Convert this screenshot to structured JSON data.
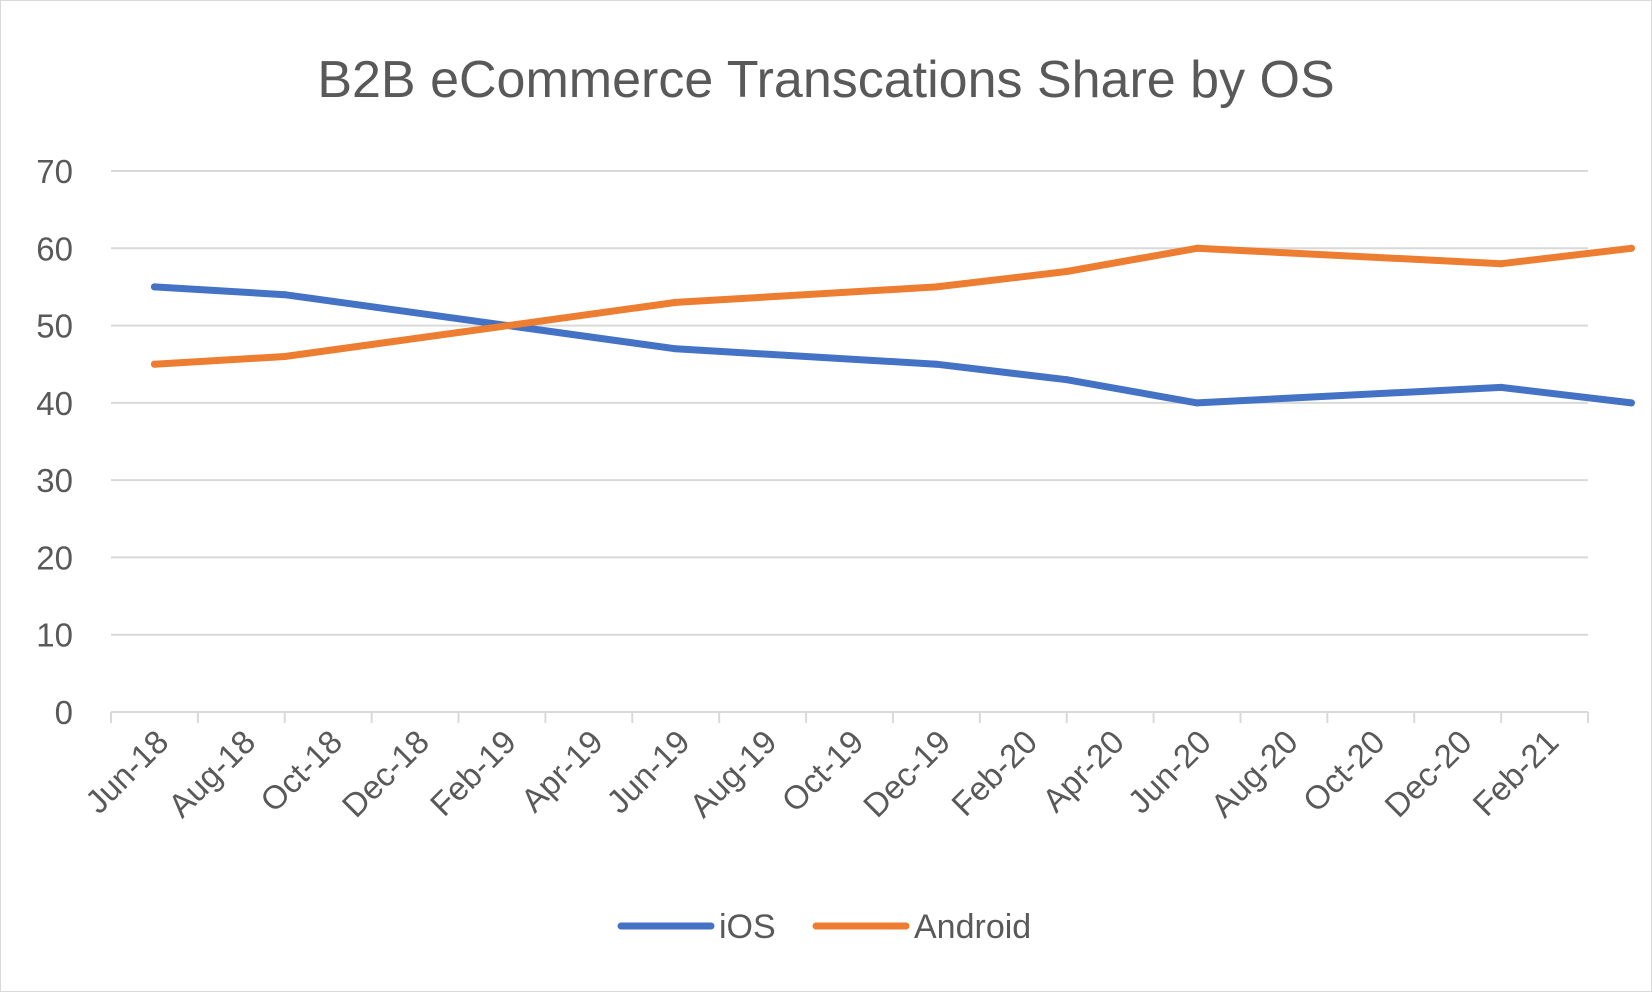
{
  "chart_data": {
    "type": "line",
    "title": "B2B eCommerce Transcations Share by OS",
    "xlabel": "",
    "ylabel": "",
    "ylim": [
      0,
      70
    ],
    "yticks": [
      0,
      10,
      20,
      30,
      40,
      50,
      60,
      70
    ],
    "grid": true,
    "legend_position": "bottom",
    "x_tick_labels": [
      "Jun-18",
      "Aug-18",
      "Oct-18",
      "Dec-18",
      "Feb-19",
      "Apr-19",
      "Jun-19",
      "Aug-19",
      "Oct-19",
      "Dec-19",
      "Feb-20",
      "Apr-20",
      "Jun-20",
      "Aug-20",
      "Oct-20",
      "Dec-20",
      "Feb-21"
    ],
    "x": [
      "2018-06",
      "2018-09",
      "2019-06",
      "2019-12",
      "2020-03",
      "2020-06",
      "2021-01",
      "2021-04"
    ],
    "series": [
      {
        "name": "iOS",
        "color": "#4472C4",
        "values": [
          55,
          54,
          47,
          45,
          43,
          40,
          42,
          40
        ]
      },
      {
        "name": "Android",
        "color": "#ED7D31",
        "values": [
          45,
          46,
          53,
          55,
          57,
          60,
          58,
          60
        ]
      }
    ]
  }
}
